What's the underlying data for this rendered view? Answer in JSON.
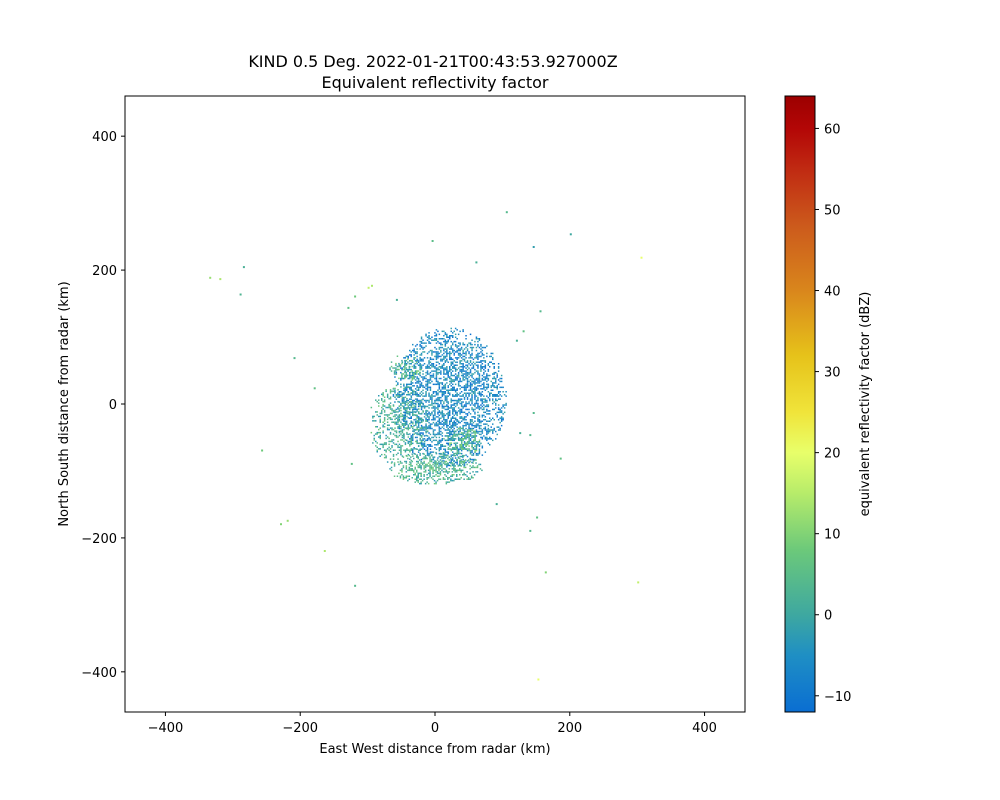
{
  "chart_data": {
    "type": "heatmap",
    "title_line1": "KIND 0.5 Deg. 2022-01-21T00:43:53.927000Z",
    "title_line2": "Equivalent reflectivity factor",
    "xlabel": "East West distance from radar (km)",
    "ylabel": "North South distance from radar (km)",
    "xlim": [
      -460,
      460
    ],
    "ylim": [
      -460,
      460
    ],
    "xticks": [
      -400,
      -200,
      0,
      200,
      400
    ],
    "yticks": [
      -400,
      -200,
      0,
      200,
      400
    ],
    "xtick_labels": [
      "−400",
      "−200",
      "0",
      "200",
      "400"
    ],
    "ytick_labels": [
      "−400",
      "−200",
      "0",
      "200",
      "400"
    ],
    "colorbar": {
      "label": "equivalent reflectivity factor (dBZ)",
      "range": [
        -12,
        64
      ],
      "ticks": [
        -10,
        0,
        10,
        20,
        30,
        40,
        50,
        60
      ],
      "tick_labels": [
        "−10",
        "0",
        "10",
        "20",
        "30",
        "40",
        "50",
        "60"
      ],
      "stops": [
        {
          "v": -12,
          "color": "#0a6ed2"
        },
        {
          "v": -5,
          "color": "#1f8fc4"
        },
        {
          "v": 0,
          "color": "#3ea8a0"
        },
        {
          "v": 8,
          "color": "#6cc97a"
        },
        {
          "v": 15,
          "color": "#b7ec6a"
        },
        {
          "v": 20,
          "color": "#e8ff6a"
        },
        {
          "v": 25,
          "color": "#f0e43a"
        },
        {
          "v": 32,
          "color": "#e6c21a"
        },
        {
          "v": 40,
          "color": "#d9861c"
        },
        {
          "v": 48,
          "color": "#cc5a1c"
        },
        {
          "v": 55,
          "color": "#c02a12"
        },
        {
          "v": 60,
          "color": "#b30606"
        },
        {
          "v": 64,
          "color": "#9c0000"
        }
      ]
    },
    "echo_regions": [
      {
        "cx": 20,
        "cy": 10,
        "rx": 85,
        "ry": 105,
        "density": 0.55,
        "base_dbz": -6
      },
      {
        "cx": -55,
        "cy": -30,
        "rx": 45,
        "ry": 60,
        "density": 0.35,
        "base_dbz": 2
      },
      {
        "cx": 0,
        "cy": -95,
        "rx": 70,
        "ry": 25,
        "density": 0.45,
        "base_dbz": 3
      },
      {
        "cx": 40,
        "cy": -55,
        "rx": 30,
        "ry": 20,
        "density": 0.5,
        "base_dbz": 5
      },
      {
        "cx": -45,
        "cy": 55,
        "rx": 25,
        "ry": 20,
        "density": 0.4,
        "base_dbz": 4
      }
    ],
    "scattered_points": [
      {
        "x": -335,
        "y": 190,
        "dbz": 12
      },
      {
        "x": -320,
        "y": 188,
        "dbz": 14
      },
      {
        "x": -285,
        "y": 206,
        "dbz": 2
      },
      {
        "x": -290,
        "y": 165,
        "dbz": 3
      },
      {
        "x": -95,
        "y": 178,
        "dbz": 14
      },
      {
        "x": -100,
        "y": 175,
        "dbz": 16
      },
      {
        "x": -120,
        "y": 162,
        "dbz": 8
      },
      {
        "x": -130,
        "y": 145,
        "dbz": 6
      },
      {
        "x": -58,
        "y": 157,
        "dbz": 2
      },
      {
        "x": -5,
        "y": 245,
        "dbz": 5
      },
      {
        "x": 60,
        "y": 213,
        "dbz": 2
      },
      {
        "x": 145,
        "y": 236,
        "dbz": -2
      },
      {
        "x": 200,
        "y": 255,
        "dbz": 0
      },
      {
        "x": 105,
        "y": 288,
        "dbz": 4
      },
      {
        "x": 305,
        "y": 220,
        "dbz": 20
      },
      {
        "x": 155,
        "y": 140,
        "dbz": 4
      },
      {
        "x": 130,
        "y": 110,
        "dbz": 6
      },
      {
        "x": 120,
        "y": 96,
        "dbz": 2
      },
      {
        "x": -210,
        "y": 70,
        "dbz": 4
      },
      {
        "x": -180,
        "y": 25,
        "dbz": 6
      },
      {
        "x": -258,
        "y": -68,
        "dbz": 8
      },
      {
        "x": -125,
        "y": -88,
        "dbz": 6
      },
      {
        "x": -230,
        "y": -178,
        "dbz": 10
      },
      {
        "x": -220,
        "y": -173,
        "dbz": 12
      },
      {
        "x": -165,
        "y": -218,
        "dbz": 14
      },
      {
        "x": -120,
        "y": -270,
        "dbz": 4
      },
      {
        "x": 90,
        "y": -148,
        "dbz": 2
      },
      {
        "x": 140,
        "y": -188,
        "dbz": 4
      },
      {
        "x": 150,
        "y": -168,
        "dbz": 6
      },
      {
        "x": 163,
        "y": -250,
        "dbz": 10
      },
      {
        "x": 140,
        "y": -45,
        "dbz": 4
      },
      {
        "x": 185,
        "y": -80,
        "dbz": 6
      },
      {
        "x": 300,
        "y": -265,
        "dbz": 16
      },
      {
        "x": 152,
        "y": -410,
        "dbz": 20
      },
      {
        "x": 125,
        "y": -42,
        "dbz": 2
      },
      {
        "x": 145,
        "y": -12,
        "dbz": 4
      }
    ]
  }
}
